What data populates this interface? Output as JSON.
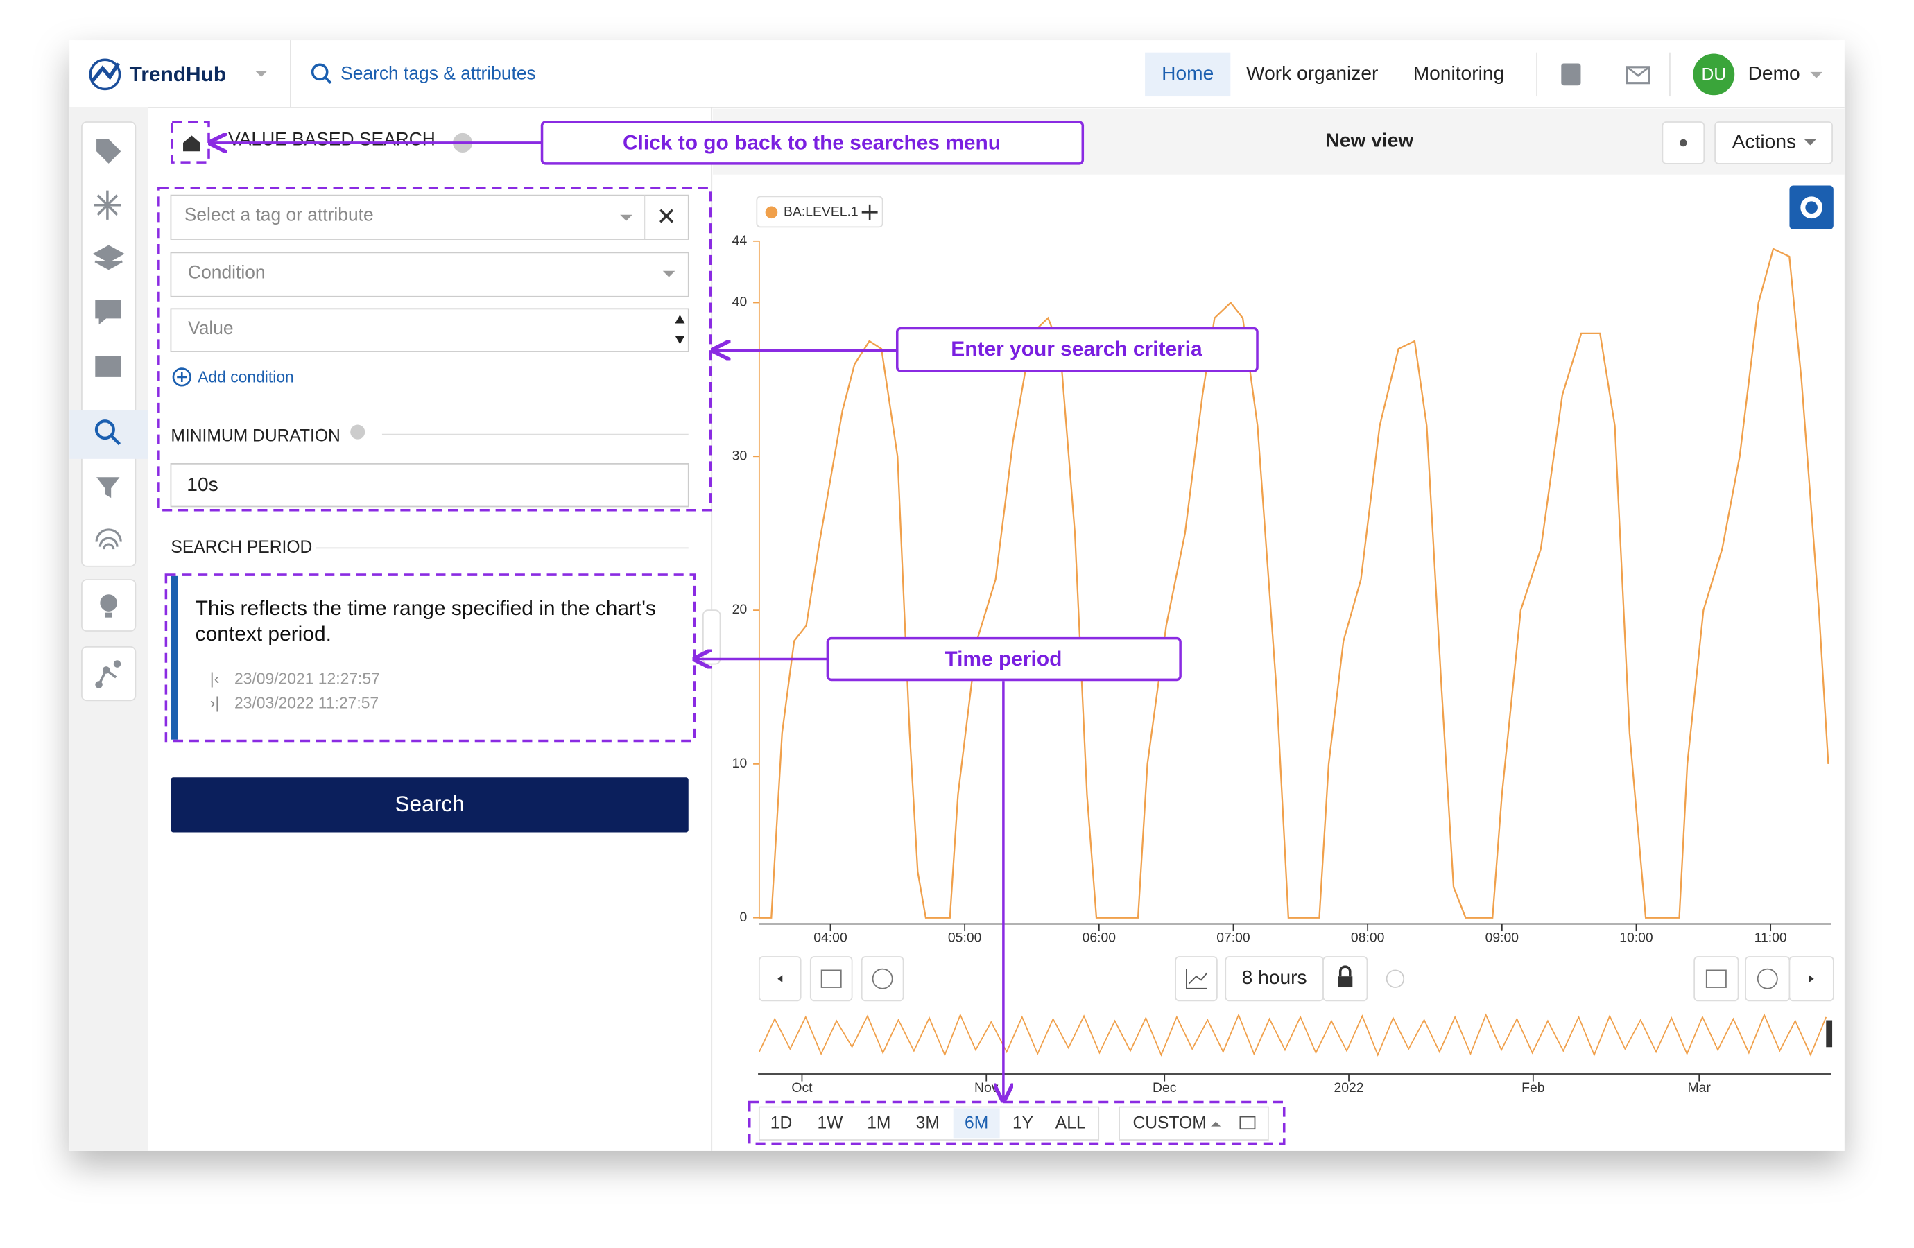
{
  "header": {
    "logo": "TrendHub",
    "search": "Search tags & attributes",
    "nav": [
      "Home",
      "Work organizer",
      "Monitoring"
    ],
    "user_initials": "DU",
    "user": "Demo"
  },
  "panel": {
    "title": "VALUE BASED SEARCH",
    "tag_placeholder": "Select a tag or attribute",
    "condition_placeholder": "Condition",
    "value_placeholder": "Value",
    "add_condition": "Add condition",
    "duration_label": "MINIMUM DURATION",
    "duration": "10s",
    "period_label": "SEARCH PERIOD",
    "period_text": "This reflects the time range specified in the chart's context period.",
    "period_start": "23/09/2021 12:27:57",
    "period_end": "23/03/2022 11:27:57",
    "search_button": "Search"
  },
  "view": {
    "title": "New view",
    "actions": "Actions",
    "range": "8 hours",
    "zoom_buttons": [
      "1D",
      "1W",
      "1M",
      "3M",
      "6M",
      "1Y",
      "ALL"
    ],
    "selected_zoom_index": 4,
    "custom": "CUSTOM"
  },
  "chart_data": {
    "type": "line",
    "x": [
      3.47,
      3.56,
      3.64,
      3.73,
      3.82,
      3.91,
      4.09,
      4.18,
      4.29,
      4.38,
      4.5,
      4.59,
      4.65,
      4.71,
      4.89,
      4.95,
      5.09,
      5.23,
      5.36,
      5.5,
      5.62,
      5.71,
      5.82,
      5.91,
      5.98,
      6.29,
      6.36,
      6.5,
      6.64,
      6.77,
      6.86,
      6.98,
      7.07,
      7.18,
      7.32,
      7.41,
      7.64,
      7.71,
      7.82,
      7.95,
      8.09,
      8.23,
      8.35,
      8.44,
      8.55,
      8.64,
      8.73,
      8.93,
      9.0,
      9.14,
      9.29,
      9.45,
      9.59,
      9.73,
      9.84,
      9.95,
      10.07,
      10.32,
      10.38,
      10.5,
      10.64,
      10.77,
      10.91,
      11.02,
      11.14,
      11.23,
      11.36,
      11.43
    ],
    "series": [
      {
        "name": "BA:LEVEL.1",
        "color": "#f0a04b",
        "values": [
          0,
          0,
          12,
          18,
          19,
          24,
          33,
          36,
          37.5,
          37,
          30,
          12,
          3,
          0,
          0,
          8,
          18,
          22,
          31,
          38,
          39,
          37,
          25,
          8,
          0,
          0,
          10,
          19,
          25,
          34,
          39,
          40,
          39,
          32,
          15,
          0,
          0,
          10,
          18,
          22,
          32,
          37,
          37.5,
          32,
          15,
          2,
          0,
          0,
          8,
          20,
          24,
          34,
          38,
          38,
          32,
          12,
          0,
          0,
          10,
          20,
          24,
          30,
          40,
          43.5,
          43,
          35,
          20,
          10
        ]
      }
    ],
    "xlim": [
      3.47,
      11.45
    ],
    "ylim": [
      0,
      44
    ],
    "xticks": [
      {
        "value": 4,
        "label": "04:00"
      },
      {
        "value": 5,
        "label": "05:00"
      },
      {
        "value": 6,
        "label": "06:00"
      },
      {
        "value": 7,
        "label": "07:00"
      },
      {
        "value": 8,
        "label": "08:00"
      },
      {
        "value": 9,
        "label": "09:00"
      },
      {
        "value": 10,
        "label": "10:00"
      },
      {
        "value": 11,
        "label": "11:00"
      }
    ],
    "yticks": [
      0,
      10,
      20,
      30,
      40,
      44
    ]
  },
  "navigator": {
    "color": "#f0a04b",
    "ylim": [
      0,
      44
    ],
    "values": [
      5,
      38,
      8,
      40,
      3,
      36,
      10,
      41,
      4,
      37,
      6,
      39,
      2,
      42,
      7,
      35,
      5,
      40,
      3,
      38,
      9,
      41,
      4,
      36,
      6,
      39,
      2,
      40,
      8,
      37,
      5,
      42,
      3,
      38,
      7,
      40,
      4,
      36,
      6,
      41,
      2,
      39,
      8,
      37,
      5,
      40,
      3,
      42,
      7,
      38,
      4,
      36,
      6,
      40,
      2,
      41,
      8,
      37,
      5,
      39,
      3,
      40,
      7,
      38,
      4,
      42,
      6,
      36,
      2,
      40
    ],
    "labels": [
      "Oct",
      "Nov",
      "Dec",
      "2022",
      "Feb",
      "Mar"
    ]
  },
  "annotations": [
    "Click to go back to the searches menu",
    "Enter your search criteria",
    "Time period"
  ]
}
